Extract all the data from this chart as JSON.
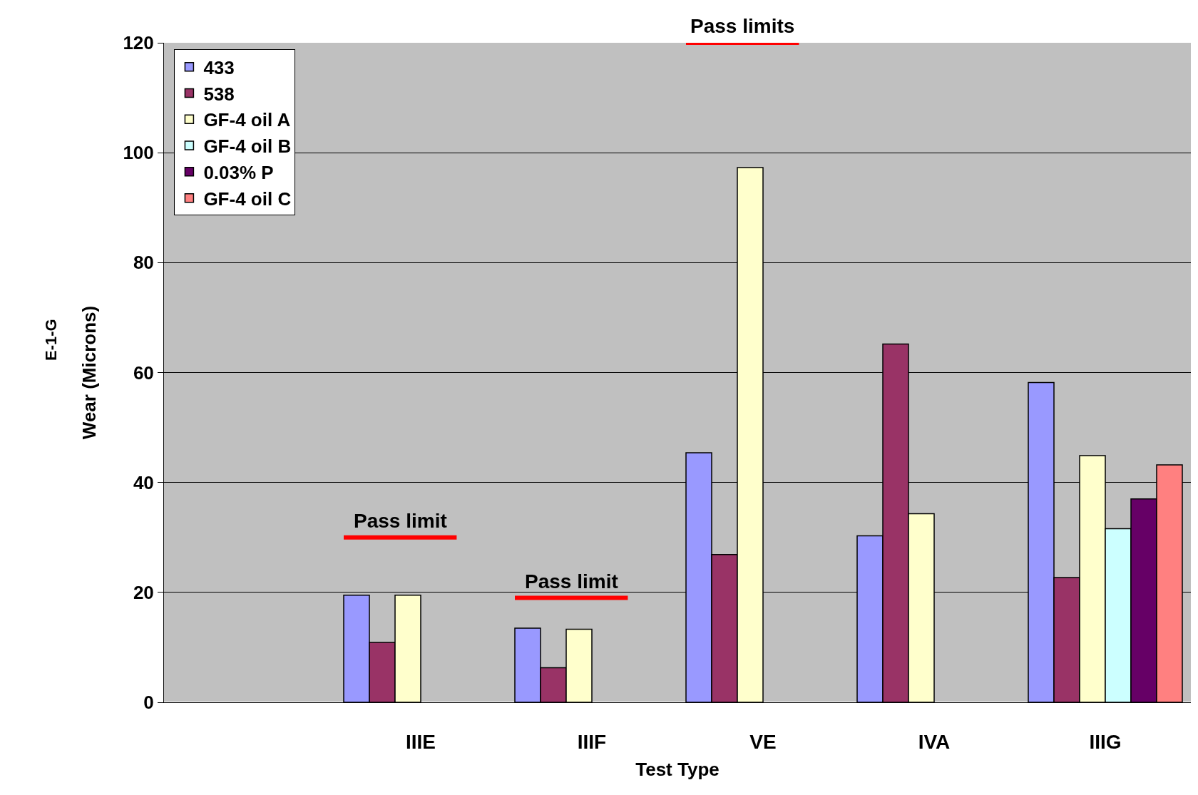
{
  "chart_data": {
    "type": "bar",
    "xlabel": "Test Type",
    "ylabel": "Wear (Microns)",
    "categories": [
      null,
      "IIIE",
      "IIIF",
      "VE",
      "IVA",
      "IIIG"
    ],
    "series": [
      {
        "name": "433",
        "color": "#9999ff",
        "values": [
          null,
          19.5,
          13.5,
          45.4,
          30.3,
          58.2
        ]
      },
      {
        "name": "538",
        "color": "#993366",
        "values": [
          null,
          10.9,
          6.3,
          26.9,
          65.2,
          22.7
        ]
      },
      {
        "name": "GF-4 oil A",
        "color": "#ffffcc",
        "values": [
          null,
          19.5,
          13.3,
          97.3,
          34.3,
          44.9
        ]
      },
      {
        "name": "GF-4 oil B",
        "color": "#ccffff",
        "values": [
          null,
          null,
          null,
          null,
          null,
          31.6
        ]
      },
      {
        "name": "0.03% P",
        "color": "#660066",
        "values": [
          null,
          null,
          null,
          null,
          null,
          37.0
        ]
      },
      {
        "name": "GF-4 oil C",
        "color": "#ff8080",
        "values": [
          null,
          null,
          null,
          null,
          null,
          43.2
        ]
      }
    ],
    "ylim": [
      0,
      120
    ],
    "yticks": [
      0,
      20,
      40,
      60,
      80,
      100,
      120
    ],
    "grid": "y",
    "legend": "top left",
    "annotations": [
      "E-1-G"
    ],
    "ref_lines": [
      {
        "axis": "y",
        "value": 30,
        "label": "Pass limit",
        "color": "#ff0000"
      },
      {
        "axis": "y",
        "value": 19,
        "label": "Pass limit",
        "color": "#ff0000"
      },
      {
        "axis": "y",
        "value": 120,
        "label": "Pass limits",
        "color": "#ff0000"
      }
    ]
  }
}
